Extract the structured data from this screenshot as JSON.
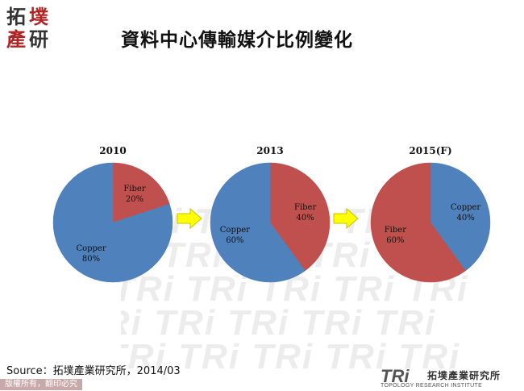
{
  "header": {
    "logo_chars": [
      "拓",
      "墣",
      "產",
      "研"
    ],
    "title": "資料中心傳輸媒介比例變化"
  },
  "watermark_text": "TRi TRi TRi TRi TRi",
  "chart_data": [
    {
      "type": "pie",
      "title": "2010",
      "slices": [
        {
          "label": "Fiber",
          "value": 20,
          "pct": "20%",
          "color": "#c0504d"
        },
        {
          "label": "Copper",
          "value": 80,
          "pct": "80%",
          "color": "#4f81bd"
        }
      ]
    },
    {
      "type": "pie",
      "title": "2013",
      "slices": [
        {
          "label": "Fiber",
          "value": 40,
          "pct": "40%",
          "color": "#c0504d"
        },
        {
          "label": "Copper",
          "value": 60,
          "pct": "60%",
          "color": "#4f81bd"
        }
      ]
    },
    {
      "type": "pie",
      "title": "2015(F)",
      "slices": [
        {
          "label": "Copper",
          "value": 40,
          "pct": "40%",
          "color": "#4f81bd"
        },
        {
          "label": "Fiber",
          "value": 60,
          "pct": "60%",
          "color": "#c0504d"
        }
      ]
    }
  ],
  "arrow_color": "#ffff00",
  "source": "Source：拓墣產業研究所，2014/03",
  "footer": {
    "rights": "版權所有，翻印必究",
    "brand_mark": "TRi",
    "brand_name": "拓墣產業研究所",
    "brand_sub": "TOPOLOGY RESEARCH INSTITUTE"
  }
}
